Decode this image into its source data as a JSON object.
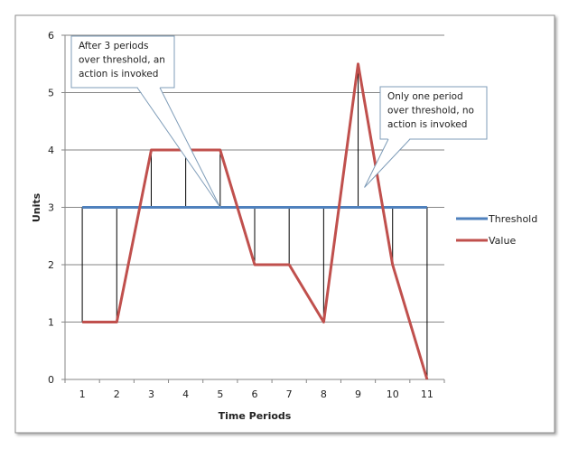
{
  "chart_data": {
    "type": "line",
    "x": [
      1,
      2,
      3,
      4,
      5,
      6,
      7,
      8,
      9,
      10,
      11
    ],
    "series": [
      {
        "name": "Threshold",
        "values": [
          3,
          3,
          3,
          3,
          3,
          3,
          3,
          3,
          3,
          3,
          3
        ],
        "color": "#4f81bd"
      },
      {
        "name": "Value",
        "values": [
          1,
          1,
          4,
          4,
          4,
          2,
          2,
          1,
          5.5,
          2,
          0
        ],
        "color": "#c0504d"
      }
    ],
    "xlabel": "Time Periods",
    "ylabel": "Units",
    "xlim": [
      0.5,
      11.5
    ],
    "ylim": [
      0,
      6
    ],
    "yticks": [
      0,
      1,
      2,
      3,
      4,
      5,
      6
    ],
    "xticks": [
      1,
      2,
      3,
      4,
      5,
      6,
      7,
      8,
      9,
      10,
      11
    ],
    "grid": "horizontal",
    "legend": "right",
    "drop_lines": "vertical lines from each Value point to the Threshold line",
    "annotations": [
      {
        "lines": [
          "After 3 periods",
          "over threshold, an",
          "action is invoked"
        ],
        "points_to_x": 5,
        "points_to_y": 3
      },
      {
        "lines": [
          "Only one period",
          "over threshold, no",
          "action is invoked"
        ],
        "points_to_x": 9,
        "points_to_y": 3
      }
    ]
  }
}
